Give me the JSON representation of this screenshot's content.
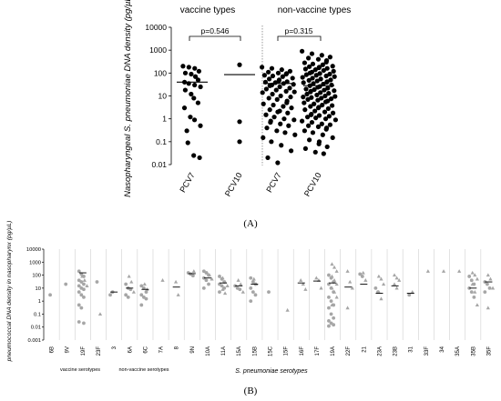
{
  "panel_a": {
    "caption": "(A)",
    "group_labels": [
      "vaccine types",
      "non-vaccine types"
    ],
    "comparisons": [
      "p=0.546",
      "p=0.315"
    ]
  },
  "panel_b": {
    "caption": "(B)",
    "group_labels": [
      "vaccine serotypes",
      "non-vaccine serotypes"
    ]
  },
  "colors": {
    "points_a": "#000000",
    "points_b": "#a6a6a6",
    "divider": "#808080",
    "gridline": "#d0d0d0"
  },
  "chart_data": [
    {
      "type": "scatter",
      "ylabel": "Nasopharyngeal S. pneumoniae DNA density (pg/µL)",
      "y_scale": "log",
      "ylim": [
        0.01,
        10000
      ],
      "y_ticks": [
        "0.01",
        "0.1",
        "1",
        "10",
        "100",
        "1000",
        "10000"
      ],
      "categories": [
        "PCV7",
        "PCV10",
        "PCV7",
        "PCV10"
      ],
      "medians": [
        40,
        85,
        35,
        28
      ],
      "series": [
        {
          "values": [
            200,
            180,
            160,
            120,
            100,
            90,
            70,
            50,
            40,
            35,
            30,
            25,
            18,
            12,
            8,
            5,
            3,
            1.2,
            0.9,
            0.5,
            0.3,
            0.09,
            0.025,
            0.02
          ]
        },
        {
          "values": [
            230,
            0.75,
            0.1
          ]
        },
        {
          "values": [
            180,
            160,
            140,
            120,
            110,
            100,
            95,
            90,
            80,
            75,
            70,
            60,
            55,
            50,
            45,
            42,
            40,
            38,
            35,
            32,
            30,
            28,
            25,
            22,
            20,
            18,
            16,
            15,
            14,
            12,
            10,
            9,
            8,
            7,
            6,
            5,
            4.5,
            4,
            3.5,
            3,
            2.5,
            2.2,
            2,
            1.8,
            1.5,
            1.2,
            1,
            0.9,
            0.8,
            0.7,
            0.6,
            0.5,
            0.4,
            0.3,
            0.25,
            0.2,
            0.15,
            0.1,
            0.07,
            0.04,
            0.02,
            0.012
          ]
        },
        {
          "values": [
            900,
            700,
            600,
            500,
            450,
            400,
            350,
            300,
            280,
            250,
            230,
            200,
            190,
            180,
            170,
            160,
            150,
            140,
            130,
            120,
            110,
            100,
            95,
            90,
            85,
            80,
            75,
            70,
            65,
            60,
            55,
            50,
            48,
            45,
            42,
            40,
            38,
            35,
            33,
            30,
            28,
            26,
            24,
            22,
            20,
            19,
            18,
            17,
            16,
            15,
            14,
            13,
            12,
            11,
            10,
            9.5,
            9,
            8.5,
            8,
            7.5,
            7,
            6.5,
            6,
            5.5,
            5,
            4.5,
            4,
            3.8,
            3.5,
            3.2,
            3,
            2.8,
            2.5,
            2.2,
            2,
            1.8,
            1.6,
            1.5,
            1.4,
            1.3,
            1.2,
            1.1,
            1,
            0.9,
            0.8,
            0.7,
            0.6,
            0.55,
            0.5,
            0.45,
            0.4,
            0.35,
            0.3,
            0.25,
            0.2,
            0.15,
            0.12,
            0.1,
            0.08,
            0.06,
            0.05,
            0.035,
            0.03
          ]
        }
      ]
    },
    {
      "type": "scatter",
      "ylabel": "pneumococcal DNA density in nasopharynx (pg/µL)",
      "xlabel": "S. pneumoniae serotypes",
      "y_scale": "log",
      "ylim": [
        0.001,
        10000
      ],
      "y_ticks": [
        "0.001",
        "0.01",
        "0.1",
        "1",
        "10",
        "100",
        "1000",
        "10000"
      ],
      "grid": "vertical",
      "categories": [
        "6B",
        "9V",
        "19F",
        "23F",
        "3",
        "6A",
        "6C",
        "7A",
        "8",
        "9N",
        "10A",
        "11A",
        "15A",
        "15B",
        "15C",
        "15F",
        "16F",
        "17F",
        "19A",
        "22F",
        "21",
        "23A",
        "23B",
        "31",
        "33F",
        "34",
        "35A",
        "35B",
        "35F"
      ],
      "medians": [
        null,
        null,
        150,
        null,
        5,
        10,
        8,
        null,
        12,
        130,
        60,
        25,
        15,
        20,
        null,
        null,
        25,
        35,
        25,
        12,
        20,
        4,
        15,
        4,
        null,
        null,
        null,
        10,
        30
      ],
      "series": [
        {
          "name": "circle",
          "values": [
            [
              3
            ],
            [
              20
            ],
            [
              200,
              120,
              80,
              40,
              30,
              20,
              15,
              10,
              8,
              5,
              3,
              2,
              0.5,
              0.3,
              0.02,
              0.025
            ],
            [
              30
            ],
            [
              3,
              5
            ],
            [
              20,
              10,
              8,
              3,
              2
            ],
            [
              15,
              10,
              5,
              3,
              2,
              1.5,
              0.5
            ],
            [],
            [],
            [
              150,
              120,
              90
            ],
            [
              200,
              150,
              100,
              60,
              40,
              20,
              10
            ],
            [
              80,
              50,
              30,
              20,
              15,
              10,
              5
            ],
            [
              15,
              10,
              8
            ],
            [
              60,
              30,
              20,
              10,
              5,
              3,
              1
            ],
            [
              5
            ],
            [],
            [],
            [],
            [
              100,
              60,
              30,
              20,
              10,
              5,
              2,
              1,
              0.5,
              0.3,
              0.1,
              0.05,
              0.03,
              0.02,
              0.015,
              0.012
            ],
            [],
            [
              120,
              80
            ],
            [
              10,
              5
            ],
            [],
            [
              3
            ],
            [],
            [],
            [],
            [
              80,
              40,
              20,
              10,
              5,
              2
            ],
            [
              30,
              20,
              10,
              5
            ]
          ]
        },
        {
          "name": "triangle",
          "values": [
            [],
            [],
            [
              80,
              40,
              15
            ],
            [
              0.1
            ],
            [],
            [
              80,
              30,
              5
            ],
            [
              20,
              8
            ],
            [
              40
            ],
            [
              30,
              3
            ],
            [
              200
            ],
            [
              150,
              100,
              50
            ],
            [
              60,
              30,
              15,
              8,
              4
            ],
            [
              40,
              20,
              5
            ],
            [
              50,
              20
            ],
            [],
            [
              0.2
            ],
            [
              40,
              20,
              8
            ],
            [
              60,
              40,
              10
            ],
            [
              700,
              400,
              200,
              80,
              40,
              20,
              10,
              5,
              2,
              0.5
            ],
            [
              200,
              30,
              10,
              0.3
            ],
            [
              150,
              40
            ],
            [
              80,
              50,
              20,
              5,
              1.5
            ],
            [
              100,
              60,
              40,
              20,
              10
            ],
            [
              5
            ],
            [
              200
            ],
            [
              200
            ],
            [
              200
            ],
            [
              150,
              100,
              50,
              20,
              5,
              0.5
            ],
            [
              100,
              50,
              10,
              0.3
            ]
          ]
        }
      ]
    }
  ]
}
